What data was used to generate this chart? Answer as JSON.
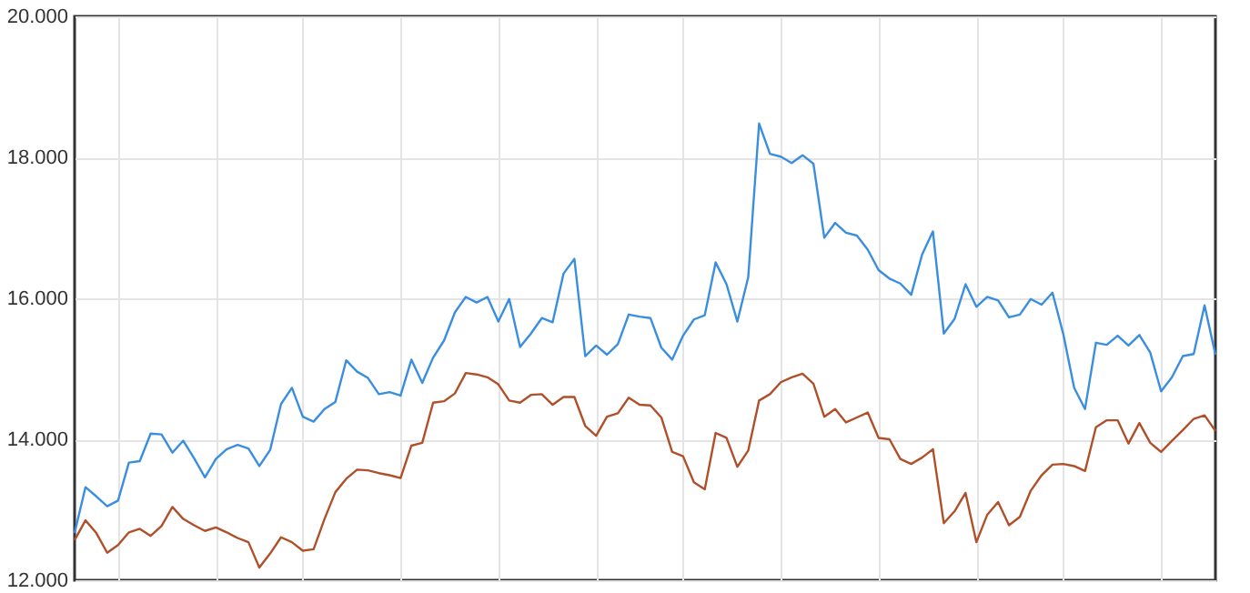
{
  "chart_data": {
    "type": "line",
    "grid": true,
    "line_style": "solid",
    "marker": "none",
    "tick_labels": "y",
    "categories": [
      null,
      null,
      null,
      null,
      null,
      null,
      null,
      null,
      null,
      null,
      null,
      null,
      null,
      null,
      null,
      null,
      null,
      null,
      null,
      null,
      null,
      null,
      null,
      null,
      null,
      null,
      null,
      null,
      null,
      null,
      null,
      null,
      null,
      null,
      null,
      null,
      null,
      null,
      null,
      null,
      null,
      null,
      null,
      null,
      null,
      null,
      null,
      null,
      null,
      null,
      null,
      null,
      null,
      null,
      null,
      null,
      null,
      null,
      null,
      null,
      null,
      null,
      null,
      null,
      null,
      null,
      null,
      null,
      null,
      null,
      null,
      null,
      null,
      null,
      null,
      null,
      null,
      null,
      null,
      null,
      null,
      null,
      null,
      null,
      null,
      null,
      null,
      null,
      null,
      null,
      null,
      null,
      null,
      null,
      null,
      null,
      null,
      null,
      null,
      null,
      null,
      null,
      null,
      null,
      null,
      null
    ],
    "ylim": [
      12,
      20
    ],
    "yticks": [
      {
        "value": 12,
        "label": "12.000"
      },
      {
        "value": 14,
        "label": "14.000"
      },
      {
        "value": 16,
        "label": "16.000"
      },
      {
        "value": 18,
        "label": "18.000"
      },
      {
        "value": 20,
        "label": "20.000"
      }
    ],
    "series": [
      {
        "color": "#3a8ee0",
        "values": [
          12.67,
          13.32,
          13.19,
          13.05,
          13.13,
          13.67,
          13.69,
          14.08,
          14.07,
          13.81,
          13.98,
          13.73,
          13.46,
          13.72,
          13.86,
          13.92,
          13.87,
          13.62,
          13.85,
          14.5,
          14.73,
          14.32,
          14.25,
          14.43,
          14.53,
          15.12,
          14.96,
          14.87,
          14.64,
          14.67,
          14.62,
          15.13,
          14.8,
          15.16,
          15.4,
          15.8,
          16.02,
          15.94,
          16.02,
          15.67,
          15.99,
          15.31,
          15.5,
          15.72,
          15.66,
          16.35,
          16.56,
          15.18,
          15.33,
          15.2,
          15.35,
          15.77,
          15.74,
          15.72,
          15.3,
          15.13,
          15.47,
          15.7,
          15.76,
          16.51,
          16.2,
          15.67,
          16.3,
          18.48,
          18.05,
          18.01,
          17.92,
          18.03,
          17.91,
          16.86,
          17.07,
          16.93,
          16.89,
          16.69,
          16.4,
          16.28,
          16.21,
          16.05,
          16.62,
          16.95,
          15.5,
          15.71,
          16.2,
          15.88,
          16.02,
          15.97,
          15.73,
          15.77,
          15.99,
          15.91,
          16.08,
          15.49,
          14.73,
          14.43,
          15.37,
          15.34,
          15.47,
          15.33,
          15.48,
          15.23,
          14.68,
          14.88,
          15.18,
          15.21,
          15.9,
          15.2
        ]
      },
      {
        "color": "#b0502a",
        "values": [
          12.57,
          12.85,
          12.67,
          12.39,
          12.5,
          12.68,
          12.73,
          12.63,
          12.77,
          13.04,
          12.87,
          12.78,
          12.7,
          12.75,
          12.68,
          12.6,
          12.54,
          12.18,
          12.38,
          12.61,
          12.54,
          12.42,
          12.44,
          12.87,
          13.25,
          13.44,
          13.57,
          13.56,
          13.52,
          13.49,
          13.45,
          13.91,
          13.95,
          14.52,
          14.54,
          14.65,
          14.94,
          14.92,
          14.88,
          14.78,
          14.55,
          14.52,
          14.63,
          14.64,
          14.49,
          14.6,
          14.6,
          14.19,
          14.05,
          14.32,
          14.37,
          14.59,
          14.49,
          14.48,
          14.31,
          13.82,
          13.76,
          13.39,
          13.29,
          14.09,
          14.02,
          13.61,
          13.84,
          14.55,
          14.64,
          14.81,
          14.88,
          14.93,
          14.79,
          14.32,
          14.43,
          14.24,
          14.31,
          14.38,
          14.02,
          14.0,
          13.72,
          13.65,
          13.74,
          13.86,
          12.81,
          12.98,
          13.24,
          12.54,
          12.93,
          13.11,
          12.78,
          12.9,
          13.27,
          13.49,
          13.64,
          13.65,
          13.62,
          13.55,
          14.17,
          14.27,
          14.27,
          13.94,
          14.23,
          13.95,
          13.82,
          13.98,
          14.13,
          14.29,
          14.34,
          14.12
        ]
      }
    ]
  }
}
